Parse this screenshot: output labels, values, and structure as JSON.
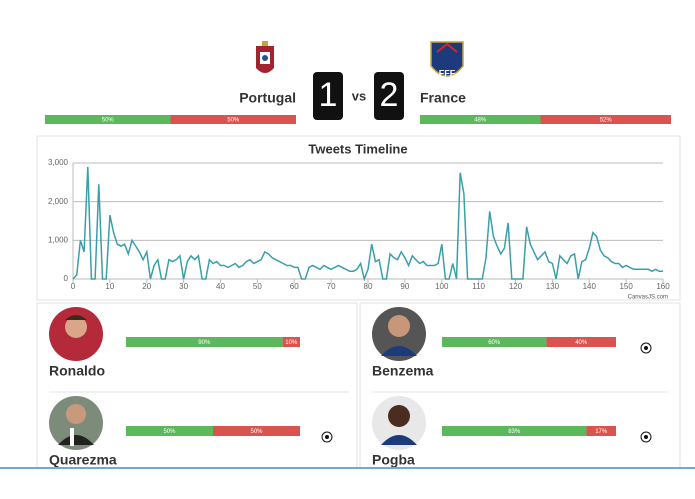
{
  "header": {
    "vs": "vs",
    "teams": [
      {
        "name": "Portugal",
        "score": 1,
        "share": {
          "values": [
            50,
            50
          ],
          "value_labels": [
            "50%",
            "50%"
          ]
        }
      },
      {
        "name": "France",
        "score": 2,
        "share": {
          "values": [
            48,
            52
          ],
          "value_labels": [
            "48%",
            "52%"
          ]
        }
      }
    ]
  },
  "chart_data": {
    "type": "line",
    "title": "Tweets Timeline",
    "credit": "CanvasJS.com",
    "x": [
      0,
      1,
      2,
      3,
      4,
      5,
      6,
      7,
      8,
      9,
      10,
      11,
      12,
      13,
      14,
      15,
      16,
      17,
      18,
      19,
      20,
      21,
      22,
      23,
      24,
      25,
      26,
      27,
      28,
      29,
      30,
      31,
      32,
      33,
      34,
      35,
      36,
      37,
      38,
      39,
      40,
      41,
      42,
      43,
      44,
      45,
      46,
      47,
      48,
      49,
      50,
      51,
      52,
      53,
      54,
      55,
      56,
      57,
      58,
      59,
      60,
      61,
      62,
      63,
      64,
      65,
      66,
      67,
      68,
      69,
      70,
      71,
      72,
      73,
      74,
      75,
      76,
      77,
      78,
      79,
      80,
      81,
      82,
      83,
      84,
      85,
      86,
      87,
      88,
      89,
      90,
      91,
      92,
      93,
      94,
      95,
      96,
      97,
      98,
      99,
      100,
      101,
      102,
      103,
      104,
      105,
      106,
      107,
      108,
      109,
      110,
      111,
      112,
      113,
      114,
      115,
      116,
      117,
      118,
      119,
      120,
      121,
      122,
      123,
      124,
      125,
      126,
      127,
      128,
      129,
      130,
      131,
      132,
      133,
      134,
      135,
      136,
      137,
      138,
      139,
      140,
      141,
      142,
      143,
      144,
      145,
      146,
      147,
      148,
      149,
      150,
      151,
      152,
      153,
      154,
      155,
      156,
      157,
      158,
      159,
      160
    ],
    "series": [
      {
        "color": "#3a9fa8",
        "values": [
          0,
          100,
          1000,
          700,
          2900,
          0,
          0,
          2450,
          0,
          0,
          1650,
          1200,
          900,
          850,
          900,
          650,
          1000,
          850,
          700,
          500,
          700,
          0,
          350,
          500,
          0,
          0,
          500,
          450,
          500,
          600,
          0,
          450,
          600,
          500,
          600,
          0,
          0,
          500,
          400,
          450,
          350,
          350,
          300,
          350,
          400,
          300,
          350,
          450,
          500,
          400,
          450,
          500,
          700,
          650,
          550,
          500,
          450,
          400,
          350,
          350,
          300,
          300,
          0,
          0,
          300,
          350,
          300,
          250,
          350,
          300,
          250,
          300,
          350,
          300,
          250,
          200,
          200,
          250,
          400,
          0,
          250,
          900,
          450,
          500,
          0,
          0,
          650,
          550,
          500,
          700,
          550,
          350,
          600,
          500,
          400,
          450,
          350,
          350,
          350,
          400,
          900,
          0,
          0,
          400,
          0,
          2750,
          2200,
          0,
          0,
          0,
          0,
          0,
          550,
          1750,
          1100,
          850,
          650,
          800,
          1450,
          0,
          0,
          0,
          0,
          1350,
          900,
          700,
          500,
          600,
          700,
          450,
          400,
          0,
          600,
          500,
          400,
          600,
          650,
          0,
          450,
          500,
          800,
          1200,
          1100,
          750,
          600,
          550,
          450,
          400,
          400,
          300,
          350,
          300,
          250,
          250,
          250,
          250,
          250,
          200,
          250,
          200,
          200
        ]
      }
    ],
    "xlim": [
      0,
      160
    ],
    "xticks": [
      0,
      10,
      20,
      30,
      40,
      50,
      60,
      70,
      80,
      90,
      100,
      110,
      120,
      130,
      140,
      150,
      160
    ],
    "ylim": [
      0,
      3000
    ],
    "yticks": [
      0,
      {
        "value": 1000,
        "label": "1,000"
      },
      {
        "value": 2000,
        "label": "2,000"
      },
      {
        "value": 3000,
        "label": "3,000"
      }
    ],
    "grid": true
  },
  "players": [
    {
      "name": "Ronaldo",
      "values": [
        90,
        10
      ],
      "value_labels": [
        "90%",
        "10%"
      ]
    },
    {
      "name": "Quarezma",
      "values": [
        50,
        50
      ],
      "value_labels": [
        "50%",
        "50%"
      ]
    },
    {
      "name": "Benzema",
      "values": [
        60,
        40
      ],
      "value_labels": [
        "60%",
        "40%"
      ]
    },
    {
      "name": "Pogba",
      "values": [
        83,
        17
      ],
      "value_labels": [
        "83%",
        "17%"
      ]
    }
  ]
}
